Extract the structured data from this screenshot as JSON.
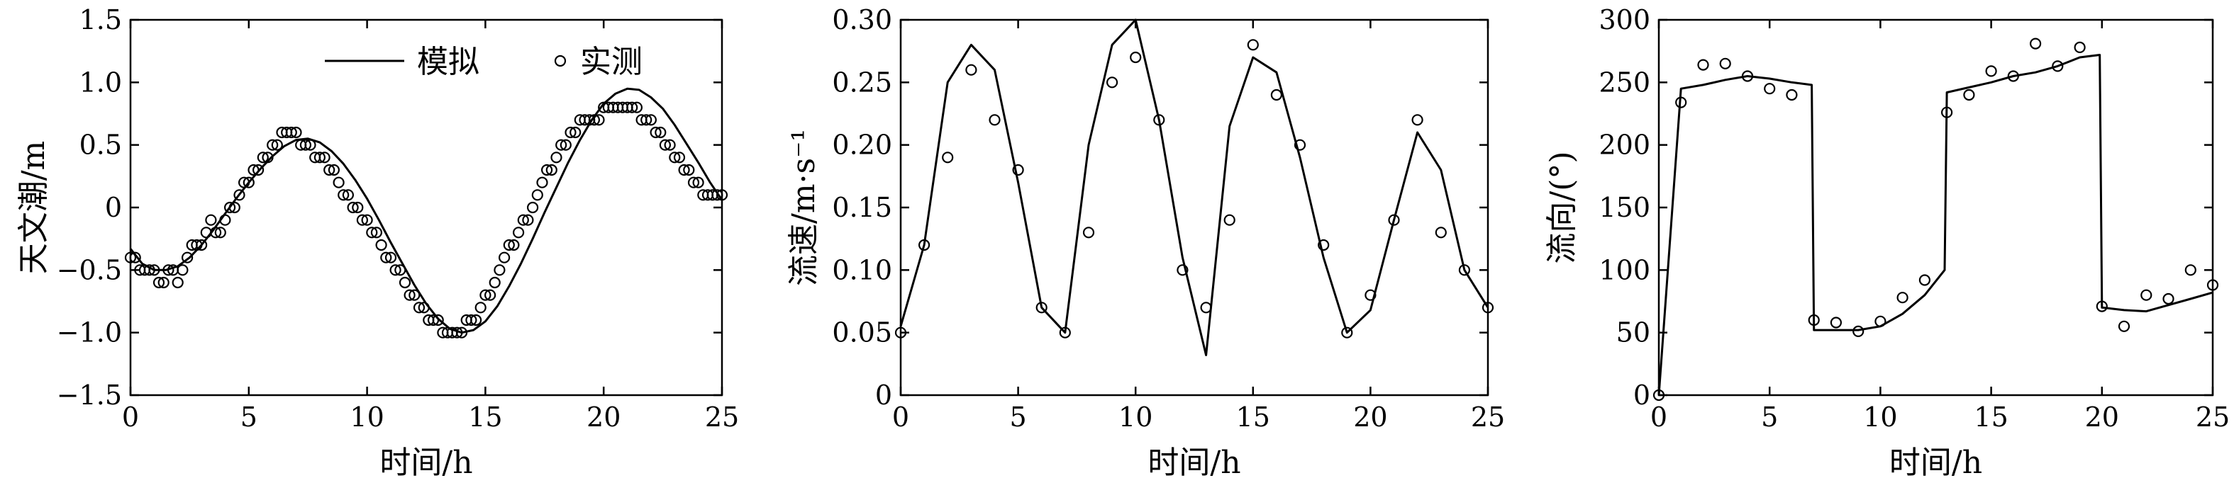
{
  "chart_data": [
    {
      "type": "line",
      "xlabel": "时间/h",
      "ylabel": "天文潮/m",
      "xlim": [
        0,
        25
      ],
      "ylim": [
        -1.5,
        1.5
      ],
      "xticks": [
        "0",
        "5",
        "10",
        "15",
        "20",
        "25"
      ],
      "yticks": [
        "−1.5",
        "−1.0",
        "−0.5",
        "0",
        "0.5",
        "1.0",
        "1.5"
      ],
      "legend": {
        "placement": "top",
        "entries": [
          "模拟",
          "实测"
        ]
      },
      "series": [
        {
          "name": "模拟",
          "x": [
            0,
            0.5,
            1,
            1.5,
            2,
            2.5,
            3,
            3.5,
            4,
            4.5,
            5,
            5.5,
            6,
            6.5,
            7,
            7.5,
            8,
            8.5,
            9,
            9.5,
            10,
            10.5,
            11,
            11.5,
            12,
            12.5,
            13,
            13.5,
            14,
            14.5,
            15,
            15.5,
            16,
            16.5,
            17,
            17.5,
            18,
            18.5,
            19,
            19.5,
            20,
            20.5,
            21,
            21.5,
            22,
            22.5,
            23,
            23.5,
            24,
            24.5,
            25
          ],
          "values": [
            -0.33,
            -0.45,
            -0.5,
            -0.5,
            -0.47,
            -0.4,
            -0.3,
            -0.18,
            -0.05,
            0.08,
            0.2,
            0.31,
            0.41,
            0.49,
            0.54,
            0.55,
            0.52,
            0.45,
            0.35,
            0.22,
            0.07,
            -0.1,
            -0.28,
            -0.45,
            -0.62,
            -0.77,
            -0.89,
            -0.97,
            -1.0,
            -0.98,
            -0.91,
            -0.79,
            -0.63,
            -0.45,
            -0.25,
            -0.04,
            0.16,
            0.36,
            0.54,
            0.7,
            0.83,
            0.91,
            0.95,
            0.94,
            0.88,
            0.79,
            0.66,
            0.51,
            0.36,
            0.2,
            0.06
          ]
        },
        {
          "name": "实测",
          "x": [
            0,
            0.2,
            0.4,
            0.6,
            0.8,
            1.0,
            1.2,
            1.4,
            1.6,
            1.8,
            2.0,
            2.2,
            2.4,
            2.6,
            2.8,
            3.0,
            3.2,
            3.4,
            3.6,
            3.8,
            4.0,
            4.2,
            4.4,
            4.6,
            4.8,
            5.0,
            5.2,
            5.4,
            5.6,
            5.8,
            6.0,
            6.2,
            6.4,
            6.6,
            6.8,
            7.0,
            7.2,
            7.4,
            7.6,
            7.8,
            8.0,
            8.2,
            8.4,
            8.6,
            8.8,
            9.0,
            9.2,
            9.4,
            9.6,
            9.8,
            10.0,
            10.2,
            10.4,
            10.6,
            10.8,
            11.0,
            11.2,
            11.4,
            11.6,
            11.8,
            12.0,
            12.2,
            12.4,
            12.6,
            12.8,
            13.0,
            13.2,
            13.4,
            13.6,
            13.8,
            14.0,
            14.2,
            14.4,
            14.6,
            14.8,
            15.0,
            15.2,
            15.4,
            15.6,
            15.8,
            16.0,
            16.2,
            16.4,
            16.6,
            16.8,
            17.0,
            17.2,
            17.4,
            17.6,
            17.8,
            18.0,
            18.2,
            18.4,
            18.6,
            18.8,
            19.0,
            19.2,
            19.4,
            19.6,
            19.8,
            20.0,
            20.2,
            20.4,
            20.6,
            20.8,
            21.0,
            21.2,
            21.4,
            21.6,
            21.8,
            22.0,
            22.2,
            22.4,
            22.6,
            22.8,
            23.0,
            23.2,
            23.4,
            23.6,
            23.8,
            24.0,
            24.2,
            24.4,
            24.6,
            24.8,
            25.0
          ],
          "values": [
            -0.4,
            -0.4,
            -0.5,
            -0.5,
            -0.5,
            -0.5,
            -0.6,
            -0.6,
            -0.5,
            -0.5,
            -0.6,
            -0.5,
            -0.4,
            -0.3,
            -0.3,
            -0.3,
            -0.2,
            -0.1,
            -0.2,
            -0.2,
            -0.1,
            0.0,
            0.0,
            0.1,
            0.2,
            0.2,
            0.3,
            0.3,
            0.4,
            0.4,
            0.5,
            0.5,
            0.6,
            0.6,
            0.6,
            0.6,
            0.5,
            0.5,
            0.5,
            0.4,
            0.4,
            0.4,
            0.3,
            0.3,
            0.2,
            0.1,
            0.1,
            0.0,
            0.0,
            -0.1,
            -0.1,
            -0.2,
            -0.2,
            -0.3,
            -0.4,
            -0.4,
            -0.5,
            -0.5,
            -0.6,
            -0.7,
            -0.7,
            -0.8,
            -0.8,
            -0.9,
            -0.9,
            -0.9,
            -1.0,
            -1.0,
            -1.0,
            -1.0,
            -1.0,
            -0.9,
            -0.9,
            -0.9,
            -0.8,
            -0.7,
            -0.7,
            -0.6,
            -0.5,
            -0.4,
            -0.3,
            -0.3,
            -0.2,
            -0.1,
            -0.1,
            0.0,
            0.1,
            0.2,
            0.3,
            0.3,
            0.4,
            0.5,
            0.5,
            0.6,
            0.6,
            0.7,
            0.7,
            0.7,
            0.7,
            0.7,
            0.8,
            0.8,
            0.8,
            0.8,
            0.8,
            0.8,
            0.8,
            0.8,
            0.7,
            0.7,
            0.7,
            0.6,
            0.6,
            0.5,
            0.5,
            0.4,
            0.4,
            0.3,
            0.3,
            0.2,
            0.2,
            0.1,
            0.1,
            0.1,
            0.1,
            0.1
          ]
        }
      ]
    },
    {
      "type": "line",
      "xlabel": "时间/h",
      "ylabel": "流速/m·s⁻¹",
      "xlim": [
        0,
        25
      ],
      "ylim": [
        0,
        0.3
      ],
      "xticks": [
        "0",
        "5",
        "10",
        "15",
        "20",
        "25"
      ],
      "yticks": [
        "0",
        "0.05",
        "0.10",
        "0.15",
        "0.20",
        "0.25",
        "0.30"
      ],
      "series": [
        {
          "name": "模拟",
          "x": [
            0,
            1,
            2,
            3,
            4,
            5,
            6,
            7,
            8,
            9,
            10,
            11,
            12,
            13,
            14,
            15,
            16,
            17,
            18,
            19,
            20,
            21,
            22,
            23,
            24,
            25
          ],
          "values": [
            0.055,
            0.12,
            0.25,
            0.28,
            0.26,
            0.17,
            0.07,
            0.05,
            0.2,
            0.28,
            0.3,
            0.22,
            0.11,
            0.032,
            0.215,
            0.27,
            0.258,
            0.19,
            0.11,
            0.05,
            0.068,
            0.14,
            0.21,
            0.18,
            0.1,
            0.07
          ]
        },
        {
          "name": "实测",
          "x": [
            0,
            1,
            2,
            3,
            4,
            5,
            6,
            7,
            8,
            9,
            10,
            11,
            12,
            13,
            14,
            15,
            16,
            17,
            18,
            19,
            20,
            21,
            22,
            23,
            24,
            25
          ],
          "values": [
            0.05,
            0.12,
            0.19,
            0.26,
            0.22,
            0.18,
            0.07,
            0.05,
            0.13,
            0.25,
            0.27,
            0.22,
            0.1,
            0.07,
            0.14,
            0.28,
            0.24,
            0.2,
            0.12,
            0.05,
            0.08,
            0.14,
            0.22,
            0.13,
            0.1,
            0.07
          ]
        }
      ]
    },
    {
      "type": "line",
      "xlabel": "时间/h",
      "ylabel": "流向/(°)",
      "xlim": [
        0,
        25
      ],
      "ylim": [
        0,
        300
      ],
      "xticks": [
        "0",
        "5",
        "10",
        "15",
        "20",
        "25"
      ],
      "yticks": [
        "0",
        "50",
        "100",
        "150",
        "200",
        "250",
        "300"
      ],
      "series": [
        {
          "name": "模拟",
          "x": [
            0,
            1,
            2,
            3,
            4,
            5,
            6,
            6.9,
            7,
            8,
            9,
            10,
            11,
            12,
            12.9,
            13,
            14,
            15,
            16,
            17,
            18,
            19,
            19.9,
            20,
            21,
            22,
            23,
            24,
            25
          ],
          "values": [
            0,
            245,
            248,
            252,
            255,
            253,
            250,
            248,
            52,
            52,
            52,
            55,
            65,
            80,
            100,
            242,
            246,
            250,
            255,
            258,
            263,
            270,
            272,
            70,
            68,
            67,
            72,
            77,
            82
          ]
        },
        {
          "name": "实测",
          "x": [
            0,
            1,
            2,
            3,
            4,
            5,
            6,
            7,
            8,
            9,
            10,
            11,
            12,
            13,
            14,
            15,
            16,
            17,
            18,
            19,
            20,
            21,
            22,
            23,
            24,
            25
          ],
          "values": [
            0,
            234,
            264,
            265,
            255,
            245,
            240,
            60,
            58,
            51,
            59,
            78,
            92,
            226,
            240,
            259,
            255,
            281,
            263,
            278,
            71,
            55,
            80,
            77,
            100,
            88
          ]
        }
      ]
    }
  ]
}
